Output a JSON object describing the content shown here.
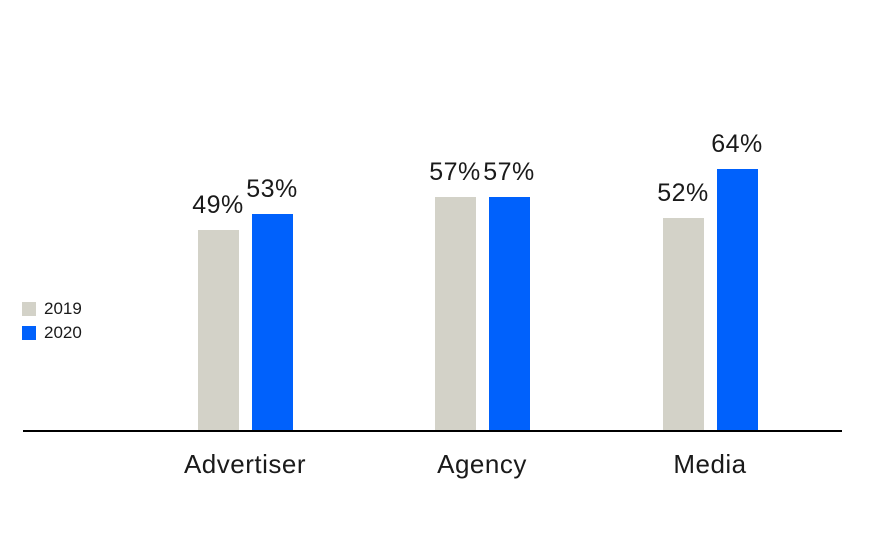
{
  "chart_data": {
    "type": "bar",
    "title": "",
    "xlabel": "",
    "ylabel": "",
    "categories": [
      "Advertiser",
      "Agency",
      "Media"
    ],
    "series": [
      {
        "name": "2019",
        "color": "#d3d2c8",
        "values": [
          49,
          57,
          52
        ]
      },
      {
        "name": "2020",
        "color": "#0061fc",
        "values": [
          53,
          57,
          64
        ]
      }
    ],
    "value_suffix": "%",
    "data_labels": {
      "Advertiser": [
        "49%",
        "53%"
      ],
      "Agency": [
        "57%",
        "57%"
      ],
      "Media": [
        "52%",
        "64%"
      ]
    },
    "ylim": [
      0,
      100
    ],
    "grid": false,
    "y_axis_visible": false,
    "legend_position": "middle-left",
    "legend_entries": [
      "2019",
      "2020"
    ]
  },
  "colors": {
    "background": "#ffffff",
    "axis_line": "#000000",
    "label_text": "#1a1a1a",
    "series_2019": "#d3d2c8",
    "series_2020": "#0061fc"
  }
}
